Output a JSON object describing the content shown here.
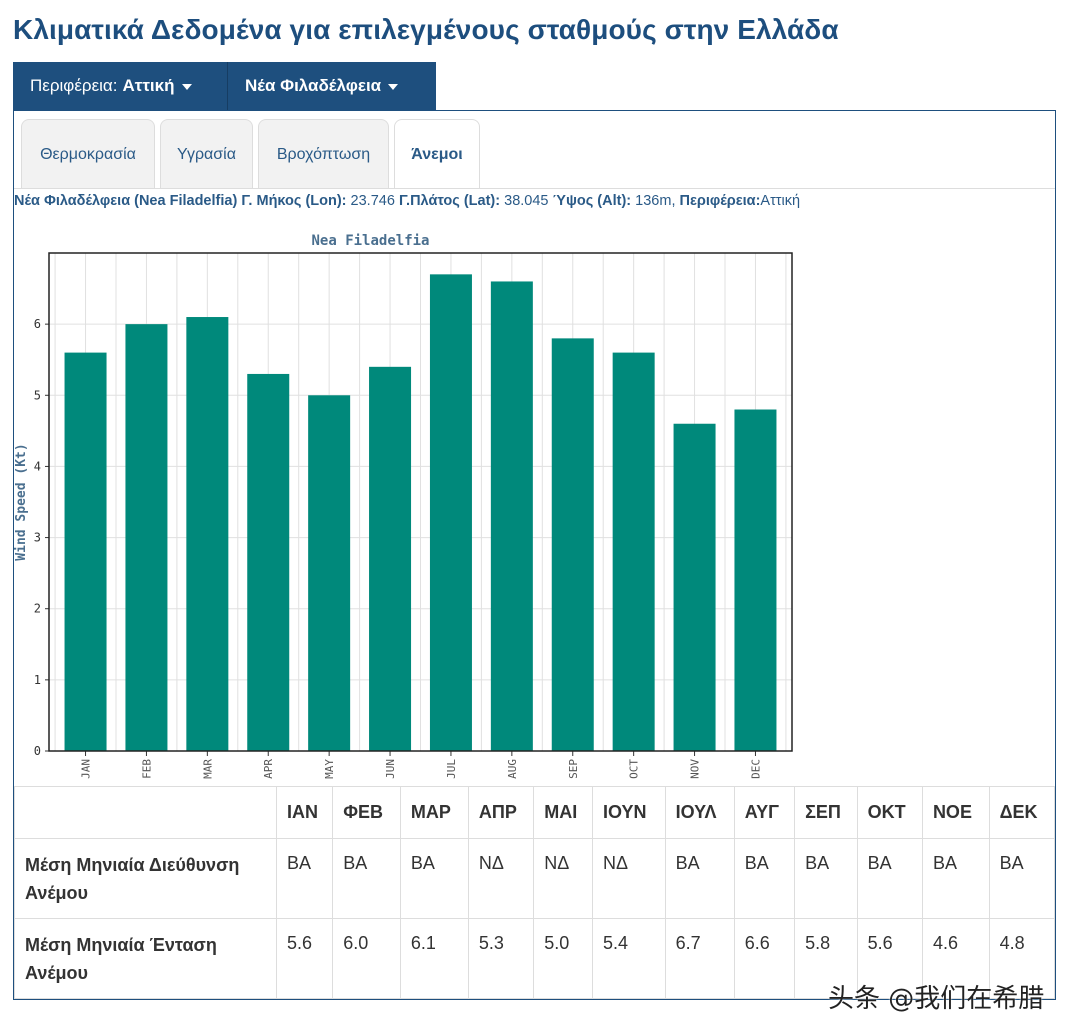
{
  "page_title": "Κλιματικά Δεδομένα για επιλεγμένους σταθμούς στην Ελλάδα",
  "nav": {
    "region_prefix": "Περιφέρεια:",
    "region_value": "Αττική",
    "station_value": "Νέα Φιλαδέλφεια"
  },
  "tabs": [
    "Θερμοκρασία",
    "Υγρασία",
    "Βροχόπτωση",
    "Άνεμοι"
  ],
  "active_tab": "Άνεμοι",
  "station_info": {
    "name": "Νέα Φιλαδέλφεια (Nea Filadelfia)",
    "lon_label": "Γ. Μήκος (Lon):",
    "lon": "23.746",
    "lat_label": "Γ.Πλάτος (Lat):",
    "lat": "38.045",
    "alt_label": "Ύψος (Alt):",
    "alt": "136m,",
    "region_label": "Περιφέρεια:",
    "region": "Αττική"
  },
  "chart_data": {
    "type": "bar",
    "title": "Nea Filadelfia",
    "xlabel": "",
    "ylabel": "Wind Speed (Kt)",
    "categories": [
      "JAN",
      "FEB",
      "MAR",
      "APR",
      "MAY",
      "JUN",
      "JUL",
      "AUG",
      "SEP",
      "OCT",
      "NOV",
      "DEC"
    ],
    "values": [
      5.6,
      6.0,
      6.1,
      5.3,
      5.0,
      5.4,
      6.7,
      6.6,
      5.8,
      5.6,
      4.6,
      4.8
    ],
    "yticks": [
      0,
      1,
      2,
      3,
      4,
      5,
      6
    ],
    "ylim": [
      0,
      7
    ],
    "grid": true,
    "bar_color": "#00897b"
  },
  "table": {
    "months": [
      "ΙΑΝ",
      "ΦΕΒ",
      "ΜΑΡ",
      "ΑΠΡ",
      "ΜΑΙ",
      "ΙΟΥΝ",
      "ΙΟΥΛ",
      "ΑΥΓ",
      "ΣΕΠ",
      "ΟΚΤ",
      "ΝΟΕ",
      "ΔΕΚ"
    ],
    "rows": [
      {
        "label": "Μέση Μηνιαία Διεύθυνση Ανέμου",
        "values": [
          "ΒΑ",
          "ΒΑ",
          "ΒΑ",
          "ΝΔ",
          "ΝΔ",
          "ΝΔ",
          "ΒΑ",
          "ΒΑ",
          "ΒΑ",
          "ΒΑ",
          "ΒΑ",
          "ΒΑ"
        ]
      },
      {
        "label": "Μέση Μηνιαία Ένταση Ανέμου",
        "values": [
          "5.6",
          "6.0",
          "6.1",
          "5.3",
          "5.0",
          "5.4",
          "6.7",
          "6.6",
          "5.8",
          "5.6",
          "4.6",
          "4.8"
        ]
      }
    ]
  },
  "watermark": "头条 @我们在希腊",
  "colors": {
    "accent": "#1e4f7e",
    "bar": "#00897b"
  }
}
